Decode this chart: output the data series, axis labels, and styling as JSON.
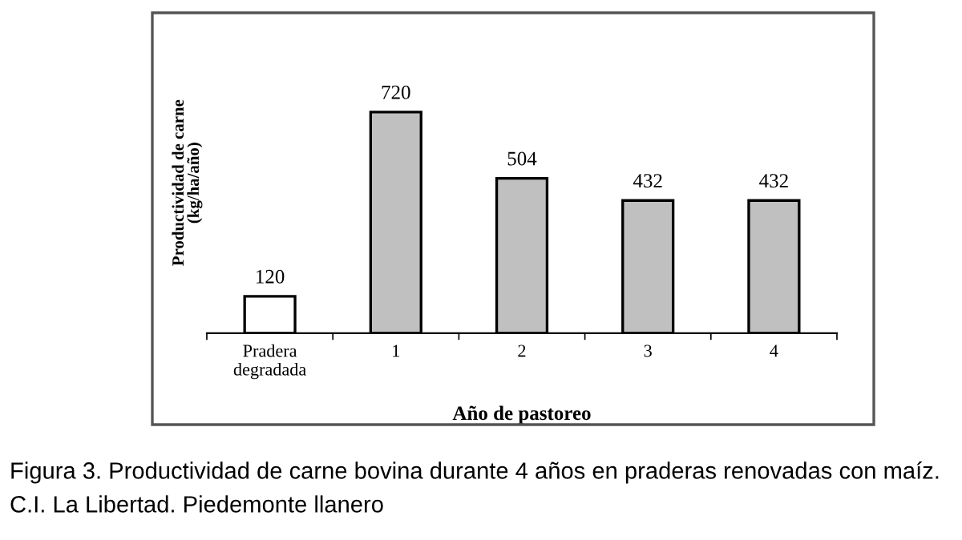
{
  "chart_data": {
    "type": "bar",
    "categories": [
      "Pradera\ndegradada",
      "1",
      "2",
      "3",
      "4"
    ],
    "values": [
      120,
      720,
      504,
      432,
      432
    ],
    "colors": [
      "#ffffff",
      "#c0c0c0",
      "#c0c0c0",
      "#c0c0c0",
      "#c0c0c0"
    ],
    "data_labels": true,
    "xlabel": "Año de pastoreo",
    "ylabel": "Productividad de carne\n(kg/ha/año)",
    "annotations": [
      "Figura 3. Productividad de carne bovina durante 4 años en praderas renovadas con maíz. C.I. La Libertad. Piedemonte llanero"
    ],
    "grid": false,
    "legend": false
  }
}
